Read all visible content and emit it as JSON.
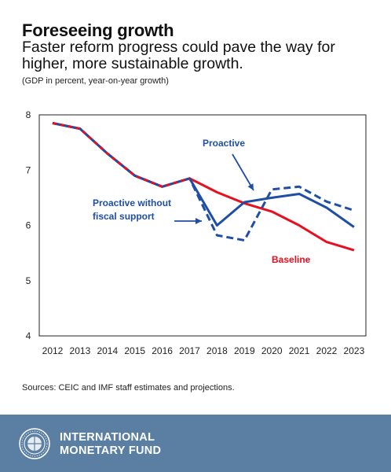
{
  "header": {
    "title": "Foreseeing growth",
    "subtitle": "Faster reform progress could pave the way for higher, more sustainable growth.",
    "units": "(GDP in percent, year-on-year growth)"
  },
  "colors": {
    "proactive": "#1f4ea6",
    "baseline": "#e8101f",
    "footer": "#5a7fa3"
  },
  "chart_data": {
    "type": "line",
    "title": "Foreseeing growth",
    "x": [
      2012,
      2013,
      2014,
      2015,
      2016,
      2017,
      2018,
      2019,
      2020,
      2021,
      2022,
      2023
    ],
    "xlabels": [
      "2012",
      "2013",
      "2014",
      "2015",
      "2016",
      "2017",
      "2018",
      "2019",
      "2020",
      "2021",
      "2022",
      "2023"
    ],
    "ylim": [
      4,
      8
    ],
    "yticks": [
      "4",
      "5",
      "6",
      "7",
      "8"
    ],
    "grid": false,
    "series": [
      {
        "name": "Baseline",
        "style": "solid",
        "values": [
          7.85,
          7.75,
          7.3,
          6.9,
          6.7,
          6.85,
          6.6,
          6.4,
          6.25,
          6.0,
          5.7,
          5.55
        ]
      },
      {
        "name": "Proactive",
        "style": "solid",
        "values": [
          7.85,
          7.75,
          7.3,
          6.9,
          6.7,
          6.85,
          6.0,
          6.42,
          6.5,
          6.57,
          6.32,
          5.97
        ]
      },
      {
        "name": "Proactive without fiscal support",
        "style": "dashed",
        "values": [
          7.85,
          7.75,
          7.3,
          6.9,
          6.7,
          6.85,
          5.82,
          5.73,
          6.65,
          6.7,
          6.43,
          6.27
        ]
      }
    ],
    "annotations": [
      {
        "text": "Proactive",
        "series": "Proactive"
      },
      {
        "text": "Proactive without fiscal support",
        "lines": [
          "Proactive without",
          "fiscal support"
        ],
        "series": "Proactive without fiscal support"
      },
      {
        "text": "Baseline",
        "series": "Baseline"
      }
    ]
  },
  "source": "Sources: CEIC and IMF staff estimates and projections.",
  "footer": {
    "org_line1": "INTERNATIONAL",
    "org_line2": "MONETARY FUND"
  }
}
